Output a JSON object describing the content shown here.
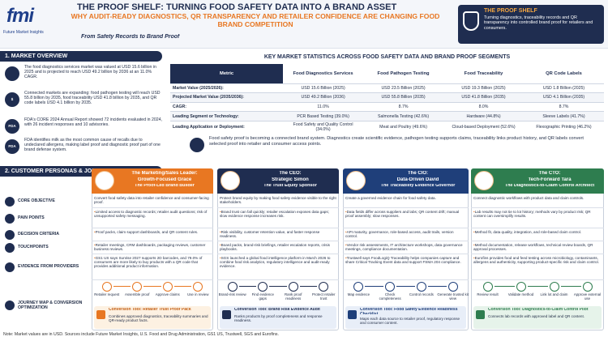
{
  "header": {
    "logo": "fmi",
    "logo_caption": "Future Market Insights",
    "title": "THE PROOF SHELF: TURNING FOOD SAFETY DATA INTO A BRAND ASSET",
    "subtitle": "WHY AUDIT-READY DIAGNOSTICS, QR TRANSPARENCY AND RETAILER CONFIDENCE ARE CHANGING FOOD BRAND COMPETITION",
    "tagline": "From Safety Records to Brand Proof",
    "callout_title": "THE PROOF SHELF",
    "callout_text": "Turning diagnostics, traceability records and QR transparency into controlled brand proof for retailers and consumers."
  },
  "market_overview": {
    "heading": "1. MARKET OVERVIEW",
    "items": [
      "The food diagnostics services market was valued at USD 15.6 billion in 2025 and is projected to reach USD 49.2 billion by 2036 at an 11.0% CAGR.",
      "Connected markets are expanding: food pathogen testing will reach USD 55.8 billion by 2035, food traceability USD 41.8 billion by 2035, and QR code labels USD 4.1 billion by 2035.",
      "FDA's CORE 2024 Annual Report showed 72 incidents evaluated in 2024, with 26 incident responses and 10 advisories.",
      "FDA identifies milk as the most common cause of recalls due to undeclared allergens, making label proof and diagnostic proof part of one brand defense system."
    ],
    "icons": [
      "$",
      "FDA",
      "FDA"
    ]
  },
  "statistics": {
    "title": "KEY MARKET STATISTICS ACROSS FOOD SAFETY DATA AND BRAND PROOF SEGMENTS",
    "columns": [
      "Metric",
      "Food Diagnostics Services",
      "Food Pathogen Testing",
      "Food Traceability",
      "QR Code Labels"
    ],
    "rows": [
      [
        "Market Value (2025/2026):",
        "USD 15.6 Billion (2025)",
        "USD 23.5 Billion (2025)",
        "USD 19.3 Billion (2025)",
        "USD 1.8 Billion (2025)"
      ],
      [
        "Projected Market Value (2035/2036):",
        "USD 49.2 Billion (2036)",
        "USD 55.8 Billion (2035)",
        "USD 41.8 Billion (2035)",
        "USD 4.1 Billion (2035)"
      ],
      [
        "CAGR:",
        "11.0%",
        "8.7%",
        "8.0%",
        "8.7%"
      ],
      [
        "Leading Segment or Technology:",
        "PCR Based Testing (39.0%)",
        "Salmonella Testing (42.6%)",
        "Hardware (44.8%)",
        "Sleeve Labels (41.7%)"
      ],
      [
        "Leading Application or Deployment:",
        "Food Safety and Quality Control (34.0%)",
        "Meat and Poultry (49.6%)",
        "Cloud-based Deployment (52.6%)",
        "Flexographic Printing (46.2%)"
      ]
    ],
    "note": "Food safety proof is becoming a connected brand system. Diagnostics create scientific evidence, pathogen testing supports claims, traceability links product history, and QR labels convert selected proof into retailer and consumer access points."
  },
  "personas_section": {
    "heading": "2. CUSTOMER PERSONAS & JOURNEY MAPS",
    "row_labels": [
      "CORE OBJECTIVE",
      "PAIN POINTS",
      "DECISION CRITERIA",
      "TOUCHPOINTS",
      "EVIDENCE FROM PROVIDERS",
      "JOURNEY MAP & CONVERSION OPTIMIZATION"
    ],
    "personas": [
      {
        "role": "The Marketing/Sales Leader:",
        "name": "Growth-Focused Grace",
        "archetype": "The Proof-Led Brand Builder",
        "objective": "Convert food safety data into retailer confidence and consumer-facing proof.",
        "pain_points": "Limited access to diagnostic records; retailer audit questions; risk of unsupported safety messaging.",
        "decision_criteria": "Proof packs, claim support dashboards, and QR content rules.",
        "touchpoints": "Retailer meetings, CRM dashboards, packaging reviews, customer business reviews.",
        "evidence": "GS1 US says Sunrise 2027 supports 2D barcodes, and 79.0% of consumers are more likely to buy products with a QR code that provides additional product information.",
        "journey": [
          "Retailer request",
          "Assemble proof",
          "Approve claims",
          "Use in review"
        ],
        "tool_title": "Conversion Tool: Retailer Trust Proof Pack",
        "tool_text": "Combines approved diagnostics, traceability summaries and QR-ready product facts."
      },
      {
        "role": "The CEO:",
        "name": "Strategic Simon",
        "archetype": "The Trust Equity Sponsor",
        "objective": "Protect brand equity by making food safety evidence visible to the right stakeholders.",
        "pain_points": "Brand trust can fall quickly; retailer escalation exposes data gaps; slow evidence response increases risk.",
        "decision_criteria": "Risk visibility, customer retention value, and faster response readiness.",
        "touchpoints": "Board packs, brand-risk briefings, retailer escalation reports, crisis playbooks.",
        "evidence": "SGS launched a global food intelligence platform in March 2026 to combine food risk analytics, regulatory intelligence and audit-ready evidence.",
        "journey": [
          "Brand-risk review",
          "Find evidence gaps",
          "Rank proof readiness",
          "Protect retailer trust"
        ],
        "tool_title": "Conversion Tool: Brand Risk Evidence Audit",
        "tool_text": "Ranks products by proof completeness and response readiness."
      },
      {
        "role": "The CIO:",
        "name": "Data-Driven David",
        "archetype": "The Traceability Evidence Governor",
        "objective": "Create a governed evidence chain for food safety data.",
        "pain_points": "Data fields differ across suppliers and labs; QR content drift; manual proof assembly; slow responses.",
        "decision_criteria": "API maturity, governance, role-based access, audit trails, version control.",
        "touchpoints": "Vendor risk assessments, IT architecture workshops, data governance meetings, compliance documentation.",
        "evidence": "Trustwell says FoodLogiQ Traceability helps companies capture and share Critical Tracking Event data and support FSMA 204 compliance.",
        "journey": [
          "Map evidence",
          "Check completeness",
          "Control records",
          "Generate trusted kit view"
        ],
        "tool_title": "Conversion Tool: Food Safety Evidence Readiness Checklist",
        "tool_text": "Maps each data source to retailer proof, regulatory response and consumer content."
      },
      {
        "role": "The CTO:",
        "name": "Tech-Forward Tara",
        "archetype": "The Diagnostics-to-Claim Control Architect",
        "objective": "Connect diagnostic workflows with product data and claim controls.",
        "pain_points": "Lab results may not tie to lot history; methods vary by product risk; QR content can oversimplify results.",
        "decision_criteria": "Method fit, data quality, integration, and role-based claim control.",
        "touchpoints": "Method documentation, release workflows, technical review boards, QR approval processes.",
        "evidence": "Eurofins provides food and feed testing across microbiology, contaminants, allergens and authenticity, supporting product-specific risk and claim control.",
        "journey": [
          "Review result",
          "Validate method",
          "Link lot and claim",
          "Approve external use"
        ],
        "tool_title": "Conversion Tool: Diagnostics-to-Claim Control Pilot",
        "tool_text": "Connects lab records with approved label and QR content."
      }
    ]
  },
  "footer": {
    "note": "Note: Market values are in USD. Sources include Future Market Insights, U.S. Food and Drug Administration, GS1 US, Trustwell, SGS and Eurofins."
  }
}
